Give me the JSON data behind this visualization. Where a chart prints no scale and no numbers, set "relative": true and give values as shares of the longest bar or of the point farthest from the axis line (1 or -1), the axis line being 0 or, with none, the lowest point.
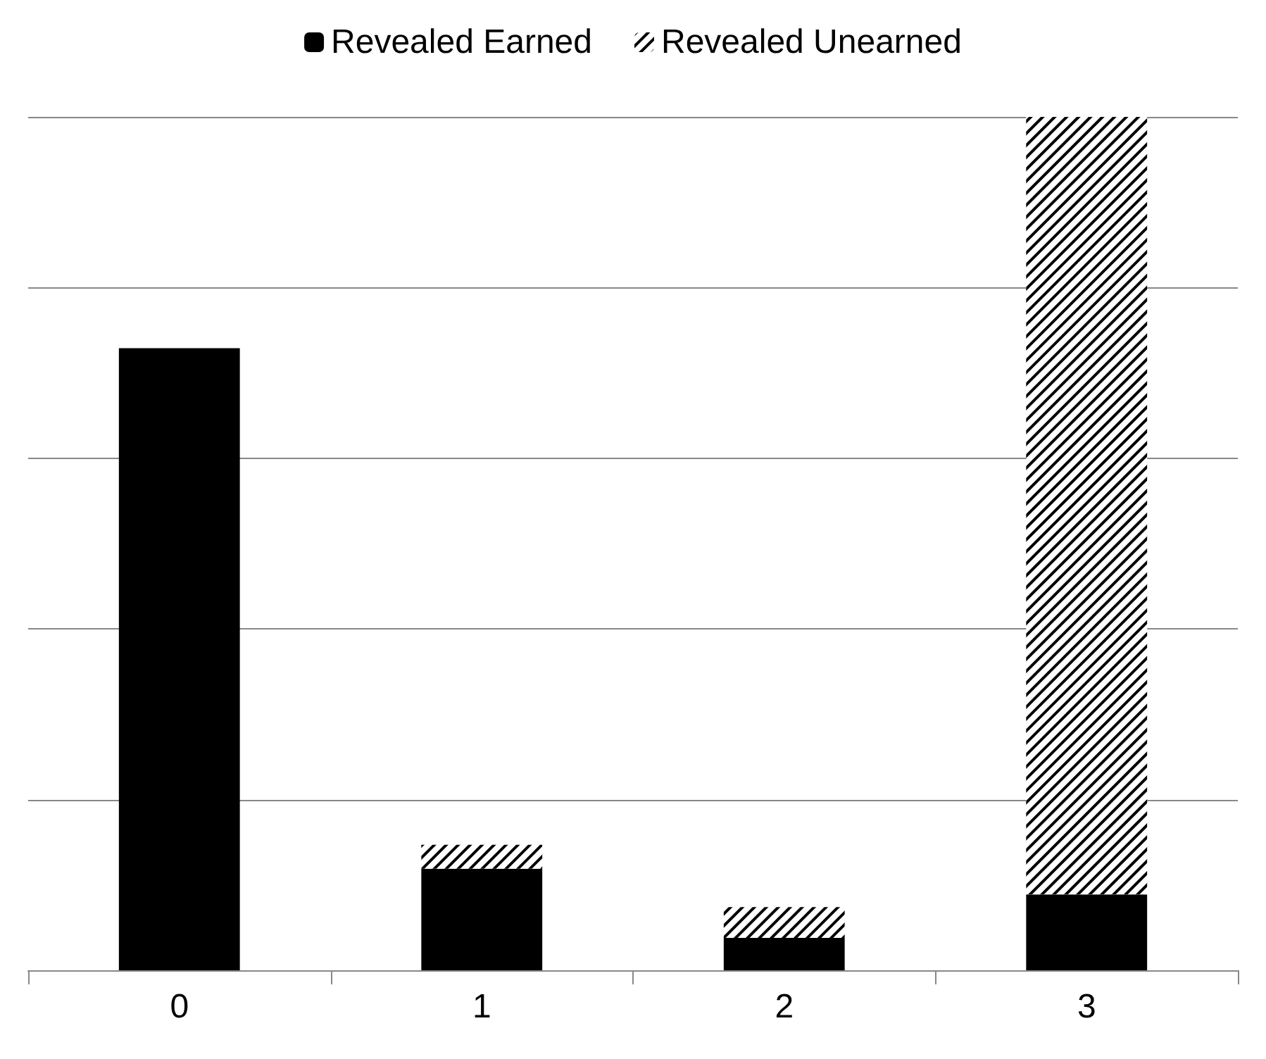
{
  "chart_data": {
    "type": "bar",
    "stacked": true,
    "relative": true,
    "categories": [
      "0",
      "1",
      "2",
      "3"
    ],
    "series": [
      {
        "name": "Revealed Earned",
        "color": "#000000",
        "values": [
          0.729,
          0.119,
          0.038,
          0.089
        ]
      },
      {
        "name": "Revealed Unearned",
        "color": "#000000",
        "values": [
          0,
          0.028,
          0.036,
          0.911
        ]
      }
    ],
    "grid": "y",
    "legend": "top"
  }
}
